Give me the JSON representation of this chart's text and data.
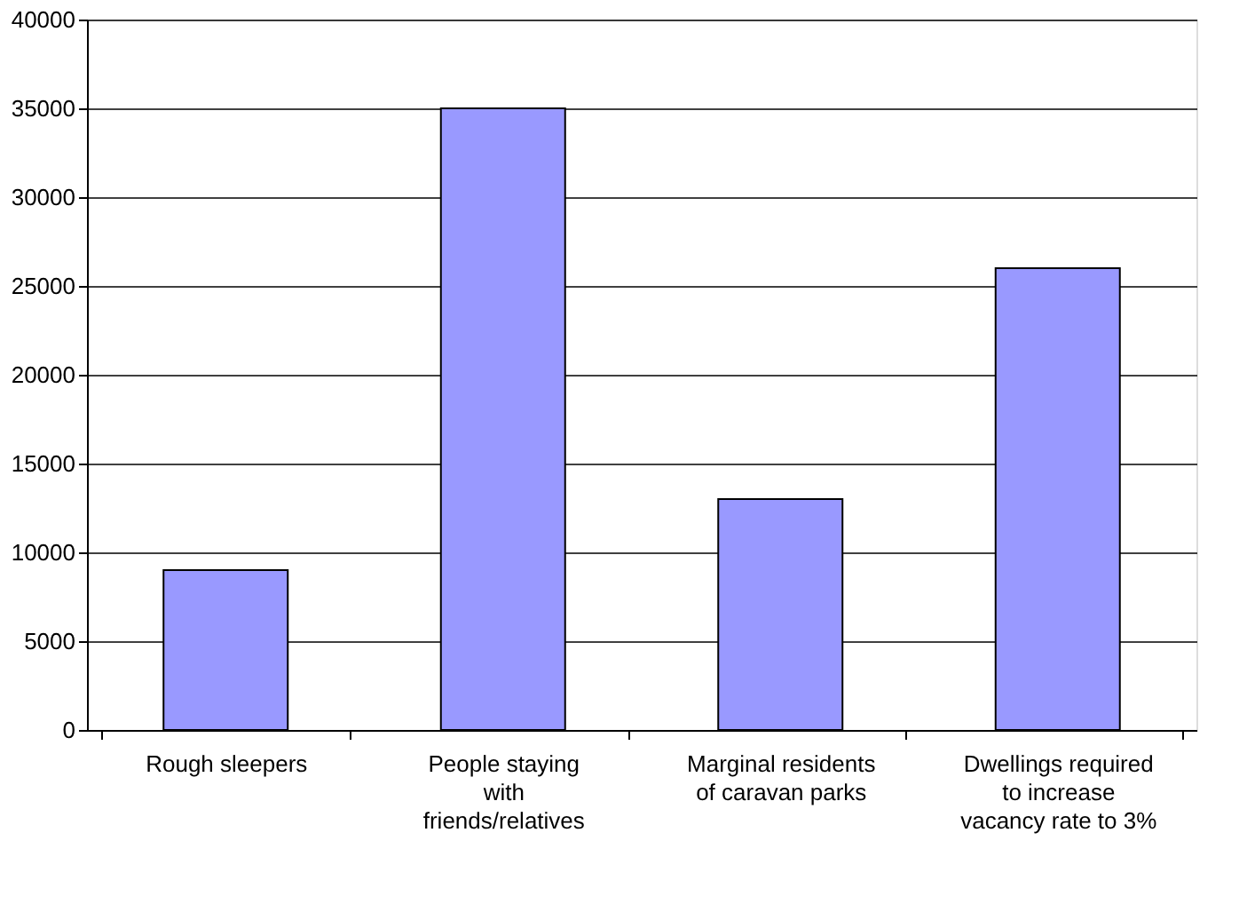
{
  "chart_data": {
    "type": "bar",
    "categories": [
      "Rough sleepers",
      "People staying with friends/relatives",
      "Marginal residents of caravan parks",
      "Dwellings required to increase vacancy rate to 3%"
    ],
    "values": [
      9000,
      35000,
      13000,
      26000
    ],
    "color": "#9999ff",
    "ylim": [
      0,
      40000
    ],
    "yticks": [
      0,
      5000,
      10000,
      15000,
      20000,
      25000,
      30000,
      35000,
      40000
    ],
    "grid": "y"
  }
}
